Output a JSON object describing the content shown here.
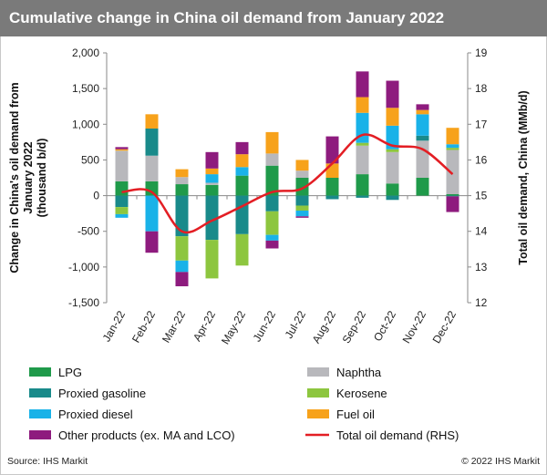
{
  "title": "Cumulative change in China oil demand from January 2022",
  "source": "Source: IHS Markit",
  "copyright": "© 2022 IHS Markit",
  "colors": {
    "title_bg": "#7a7a7a",
    "LPG": "#1f9a4a",
    "Naphtha": "#b8b8bc",
    "Proxied gasoline": "#198a8a",
    "Kerosene": "#8dc63f",
    "Proxied diesel": "#19b2e8",
    "Fuel oil": "#f7a21b",
    "Other products (ex. MA and LCO)": "#8e1b7e",
    "Total oil demand (RHS)": "#e31e24"
  },
  "chart_data": {
    "type": "bar",
    "stacked": true,
    "title": "Cumulative change in China oil demand from January 2022",
    "categories": [
      "Jan-22",
      "Feb-22",
      "Mar-22",
      "Apr-22",
      "May-22",
      "Jun-22",
      "Jul-22",
      "Aug-22",
      "Sep-22",
      "Oct-22",
      "Nov-22",
      "Dec-22"
    ],
    "ylabel": "Change in China's oil demand from January 2022 (thousand b/d)",
    "y2label": "Total oil demand, China (MMb/d)",
    "ylim": [
      -1500,
      2000
    ],
    "y2lim": [
      12,
      19
    ],
    "yticks": [
      "-1,500",
      "-1,000",
      "-500",
      "0",
      "500",
      "1,000",
      "1,500",
      "2,000"
    ],
    "y2ticks": [
      "12",
      "13",
      "14",
      "15",
      "16",
      "17",
      "18",
      "19"
    ],
    "grid": false,
    "legend_position": "bottom",
    "series": [
      {
        "name": "LPG",
        "values": [
          200,
          200,
          160,
          150,
          280,
          420,
          250,
          250,
          300,
          170,
          250,
          20
        ]
      },
      {
        "name": "Naphtha",
        "values": [
          430,
          360,
          100,
          30,
          0,
          170,
          100,
          0,
          400,
          440,
          520,
          620
        ]
      },
      {
        "name": "Proxied gasoline",
        "values": [
          -160,
          380,
          -570,
          -620,
          -540,
          -220,
          -140,
          -50,
          -30,
          -60,
          70,
          -10
        ]
      },
      {
        "name": "Kerosene",
        "values": [
          -100,
          0,
          -340,
          -540,
          -440,
          -330,
          -70,
          0,
          40,
          40,
          0,
          30
        ]
      },
      {
        "name": "Proxied diesel",
        "values": [
          -50,
          -500,
          -160,
          120,
          120,
          -80,
          -80,
          0,
          420,
          330,
          300,
          50
        ]
      },
      {
        "name": "Fuel oil",
        "values": [
          20,
          200,
          110,
          80,
          180,
          300,
          150,
          200,
          220,
          250,
          60,
          230
        ]
      },
      {
        "name": "Other products (ex. MA and LCO)",
        "values": [
          30,
          -300,
          -200,
          230,
          170,
          -110,
          -20,
          380,
          360,
          380,
          80,
          -220
        ]
      }
    ],
    "line_series": {
      "name": "Total oil demand (RHS)",
      "axis": "right",
      "values": [
        15.1,
        15.1,
        14.0,
        14.3,
        14.7,
        15.1,
        15.2,
        15.9,
        16.7,
        16.4,
        16.3,
        15.6
      ]
    }
  },
  "legend_items": [
    {
      "name": "LPG",
      "color": "#1f9a4a",
      "kind": "bar"
    },
    {
      "name": "Naphtha",
      "color": "#b8b8bc",
      "kind": "bar"
    },
    {
      "name": "Proxied gasoline",
      "color": "#198a8a",
      "kind": "bar"
    },
    {
      "name": "Kerosene",
      "color": "#8dc63f",
      "kind": "bar"
    },
    {
      "name": "Proxied diesel",
      "color": "#19b2e8",
      "kind": "bar"
    },
    {
      "name": "Fuel oil",
      "color": "#f7a21b",
      "kind": "bar"
    },
    {
      "name": "Other products (ex. MA and LCO)",
      "color": "#8e1b7e",
      "kind": "bar"
    },
    {
      "name": "Total oil demand (RHS)",
      "color": "#e31e24",
      "kind": "line"
    }
  ]
}
